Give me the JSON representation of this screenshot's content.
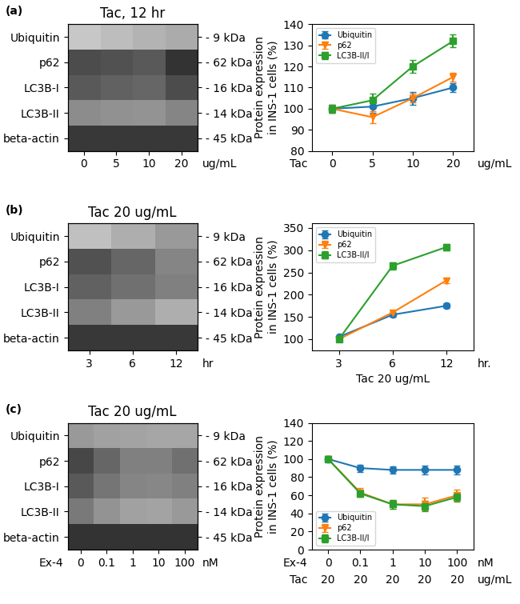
{
  "chart_data": [
    {
      "type": "heatmap",
      "annotations": [
        "(a)"
      ],
      "title": "Tac, 12 hr",
      "categories": [
        "0",
        "5",
        "10",
        "20"
      ],
      "tick_unit": "ug/mL",
      "rows": [
        "Ubiquitin",
        "p62",
        "LC3B-I",
        "LC3B-II",
        "beta-actin"
      ],
      "row_units": [
        "- 9 kDa",
        "- 62 kDa",
        "- 16 kDa",
        "- 14 kDa",
        "- 45 kDa"
      ],
      "clim": [
        0,
        1
      ],
      "cells": [
        [
          0.78,
          0.74,
          0.7,
          0.67
        ],
        [
          0.3,
          0.32,
          0.35,
          0.2
        ],
        [
          0.35,
          0.38,
          0.4,
          0.3
        ],
        [
          0.55,
          0.57,
          0.58,
          0.52
        ],
        [
          0.22,
          0.22,
          0.22,
          0.22
        ]
      ]
    },
    {
      "type": "line",
      "categories": [
        "0",
        "5",
        "10",
        "20"
      ],
      "tick_row_name": "Tac",
      "tick_unit": "ug/mL",
      "ylabel": "Protein expression\nin INS-1 cells (%)",
      "ylim": [
        80,
        140
      ],
      "yticks": [
        80,
        90,
        100,
        110,
        120,
        130,
        140
      ],
      "legend": "upper left",
      "series": [
        {
          "name": "Ubiquitin",
          "marker": "circle",
          "values": [
            100,
            101,
            105,
            110
          ],
          "errors": [
            2,
            3,
            3,
            2
          ]
        },
        {
          "name": "p62",
          "marker": "triangle_down",
          "values": [
            100,
            96,
            105,
            115
          ],
          "errors": [
            2,
            3,
            2,
            2
          ]
        },
        {
          "name": "LC3B-II/I",
          "marker": "square",
          "values": [
            100,
            104,
            120,
            132
          ],
          "errors": [
            2,
            3,
            3,
            3
          ]
        }
      ]
    },
    {
      "type": "heatmap",
      "annotations": [
        "(b)"
      ],
      "title": "Tac 20 ug/mL",
      "categories": [
        "3",
        "6",
        "12"
      ],
      "tick_unit": "hr",
      "rows": [
        "Ubiquitin",
        "p62",
        "LC3B-I",
        "LC3B-II",
        "beta-actin"
      ],
      "row_units": [
        "- 9 kDa",
        "- 62 kDa",
        "- 16 kDa",
        "- 14 kDa",
        "- 45 kDa"
      ],
      "clim": [
        0,
        1
      ],
      "cells": [
        [
          0.75,
          0.68,
          0.6
        ],
        [
          0.32,
          0.4,
          0.52
        ],
        [
          0.38,
          0.44,
          0.5
        ],
        [
          0.5,
          0.6,
          0.68
        ],
        [
          0.22,
          0.22,
          0.22
        ]
      ]
    },
    {
      "type": "line",
      "categories": [
        "3",
        "6",
        "12"
      ],
      "tick_unit": "hr.",
      "xlabel": "Tac 20 ug/mL",
      "ylabel": "Protein expression\nin INS-1 cells (%)",
      "ylim": [
        75,
        360
      ],
      "yticks": [
        100,
        150,
        200,
        250,
        300,
        350
      ],
      "legend": "upper left",
      "series": [
        {
          "name": "Ubiquitin",
          "marker": "circle",
          "values": [
            105,
            155,
            175
          ],
          "errors": [
            3,
            5,
            5
          ]
        },
        {
          "name": "p62",
          "marker": "triangle_down",
          "values": [
            100,
            160,
            232
          ],
          "errors": [
            4,
            5,
            6
          ]
        },
        {
          "name": "LC3B-II/I",
          "marker": "square",
          "values": [
            100,
            265,
            307
          ],
          "errors": [
            5,
            8,
            7
          ]
        }
      ]
    },
    {
      "type": "heatmap",
      "annotations": [
        "(c)"
      ],
      "title": "Tac 20 ug/mL",
      "categories": [
        "0",
        "0.1",
        "1",
        "10",
        "100"
      ],
      "tick_row_name": "Ex-4",
      "tick_unit": "nM",
      "rows": [
        "Ubiquitin",
        "p62",
        "LC3B-I",
        "LC3B-II",
        "beta-actin"
      ],
      "row_units": [
        "- 9 kDa",
        "- 62 kDa",
        "- 16 kDa",
        "- 14 kDa",
        "- 45 kDa"
      ],
      "clim": [
        0,
        1
      ],
      "cells": [
        [
          0.6,
          0.63,
          0.64,
          0.65,
          0.65
        ],
        [
          0.28,
          0.4,
          0.5,
          0.5,
          0.44
        ],
        [
          0.35,
          0.46,
          0.52,
          0.53,
          0.5
        ],
        [
          0.48,
          0.58,
          0.63,
          0.64,
          0.6
        ],
        [
          0.2,
          0.2,
          0.2,
          0.2,
          0.2
        ]
      ]
    },
    {
      "type": "line",
      "categories": [
        "0",
        "0.1",
        "1",
        "10",
        "100"
      ],
      "tick_row_name": "Ex-4",
      "tick_unit": "nM",
      "extra_tick_rows": [
        {
          "name": "Tac",
          "labels": [
            "20",
            "20",
            "20",
            "20",
            "20"
          ],
          "unit": "ug/mL"
        }
      ],
      "ylabel": "Protein expression\nin INS-1 cells (%)",
      "ylim": [
        0,
        140
      ],
      "yticks": [
        0,
        20,
        40,
        60,
        80,
        100,
        120,
        140
      ],
      "legend": "lower left",
      "series": [
        {
          "name": "Ubiquitin",
          "marker": "circle",
          "values": [
            100,
            90,
            88,
            88,
            88
          ],
          "errors": [
            3,
            4,
            4,
            5,
            5
          ]
        },
        {
          "name": "p62",
          "marker": "triangle_down",
          "values": [
            100,
            63,
            50,
            50,
            60
          ],
          "errors": [
            3,
            5,
            5,
            7,
            6
          ]
        },
        {
          "name": "LC3B-II/I",
          "marker": "square",
          "values": [
            100,
            62,
            50,
            48,
            58
          ],
          "errors": [
            3,
            4,
            5,
            6,
            5
          ]
        }
      ]
    }
  ]
}
